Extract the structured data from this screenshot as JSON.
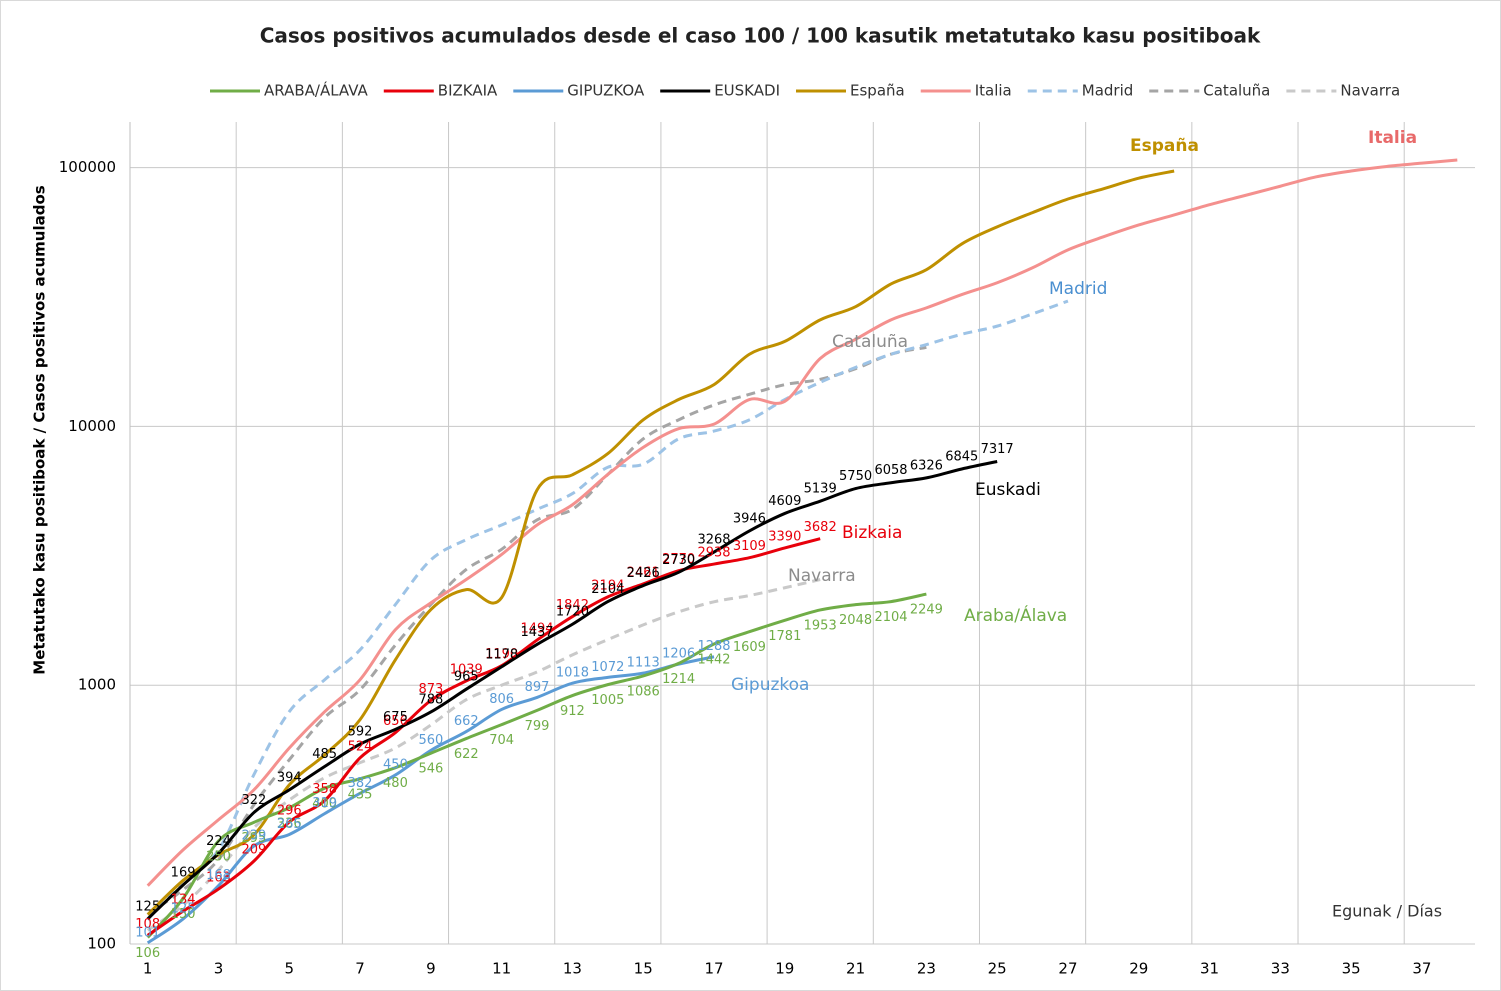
{
  "chart_data": {
    "type": "line",
    "title": "Casos positivos acumulados desde el caso 100 / 100 kasutik metatutako kasu positiboak",
    "y_axis_label": "Metatutako kasu positiboak / Casos positivos acumulados",
    "x_axis_label": "Egunak / Días",
    "x": [
      1,
      2,
      3,
      4,
      5,
      6,
      7,
      8,
      9,
      10,
      11,
      12,
      13,
      14,
      15,
      16,
      17,
      18,
      19,
      20,
      21,
      22,
      23,
      24,
      25,
      26,
      27,
      28,
      29,
      30,
      31,
      32,
      33,
      34,
      35,
      36,
      37,
      38
    ],
    "xlim": [
      0.5,
      38.5
    ],
    "xticks": [
      1,
      3,
      5,
      7,
      9,
      11,
      13,
      15,
      17,
      19,
      21,
      23,
      25,
      27,
      29,
      31,
      33,
      35,
      37
    ],
    "xgrid": [
      3.5,
      6.5,
      9.5,
      12.5,
      15.5,
      18.5,
      21.5,
      24.5,
      27.5,
      30.5,
      33.5,
      36.5
    ],
    "ylim": [
      100,
      150000
    ],
    "yticks": [
      100,
      1000,
      10000,
      100000
    ],
    "log_y": true,
    "grid": true,
    "legend": "top",
    "series": [
      {
        "name": "ARABA/ÁLAVA",
        "label": "Araba/Álava",
        "color": "#70ad47",
        "dash": false,
        "data_labels": true,
        "values": [
          106,
          150,
          250,
          295,
          336,
          400,
          435,
          480,
          546,
          622,
          704,
          799,
          912,
          1005,
          1086,
          1214,
          1442,
          1609,
          1781,
          1953,
          2048,
          2104,
          2249,
          null,
          null,
          null,
          null,
          null,
          null,
          null,
          null,
          null,
          null,
          null,
          null,
          null,
          null,
          null
        ]
      },
      {
        "name": "BIZKAIA",
        "label": "Bizkaia",
        "color": "#e8000b",
        "dash": false,
        "data_labels": true,
        "values": [
          108,
          134,
          163,
          209,
          296,
          358,
          524,
          656,
          873,
          1039,
          1190,
          1494,
          1842,
          2194,
          2461,
          2770,
          2938,
          3109,
          3390,
          3682,
          null,
          null,
          null,
          null,
          null,
          null,
          null,
          null,
          null,
          null,
          null,
          null,
          null,
          null,
          null,
          null,
          null,
          null
        ]
      },
      {
        "name": "GIPUZKOA",
        "label": "Gipuzkoa",
        "color": "#5b9bd5",
        "dash": false,
        "data_labels": true,
        "values": [
          101,
          125,
          168,
          239,
          265,
          319,
          382,
          450,
          560,
          662,
          806,
          897,
          1018,
          1072,
          1113,
          1206,
          1288,
          null,
          null,
          null,
          null,
          null,
          null,
          null,
          null,
          null,
          null,
          null,
          null,
          null,
          null,
          null,
          null,
          null,
          null,
          null,
          null,
          null
        ]
      },
      {
        "name": "EUSKADI",
        "label": "Euskadi",
        "color": "#000000",
        "dash": false,
        "data_labels": true,
        "values": [
          125,
          169,
          224,
          322,
          394,
          485,
          592,
          675,
          788,
          965,
          1178,
          1437,
          1720,
          2104,
          2426,
          2730,
          3268,
          3946,
          4609,
          5139,
          5750,
          6058,
          6326,
          6845,
          7317,
          null,
          null,
          null,
          null,
          null,
          null,
          null,
          null,
          null,
          null,
          null,
          null,
          null
        ]
      },
      {
        "name": "España",
        "label": "España",
        "color": "#bf9000",
        "dash": false,
        "data_labels": false,
        "values": [
          130,
          176,
          221,
          264,
          412,
          538,
          736,
          1255,
          1960,
          2340,
          2180,
          5680,
          6500,
          7850,
          10600,
          12700,
          14500,
          19000,
          21300,
          25800,
          29000,
          35500,
          40300,
          50700,
          59000,
          67000,
          75600,
          82800,
          91000,
          97000,
          null,
          null,
          null,
          null,
          null,
          null,
          null,
          null
        ]
      },
      {
        "name": "Italia",
        "label": "Italia",
        "color": "#f4908e",
        "dash": false,
        "data_labels": false,
        "values": [
          168,
          231,
          302,
          394,
          572,
          790,
          1050,
          1640,
          2080,
          2560,
          3200,
          4160,
          4980,
          6520,
          8300,
          9800,
          10200,
          12700,
          12500,
          18300,
          21700,
          25800,
          28700,
          32300,
          35900,
          41000,
          48100,
          54000,
          60000,
          65600,
          71900,
          78000,
          84700,
          92000,
          97000,
          101000,
          104000,
          107000
        ]
      },
      {
        "name": "Madrid",
        "label": "Madrid",
        "color": "#9dc3e6",
        "dash": true,
        "data_labels": false,
        "values": [
          124,
          176,
          231,
          451,
          790,
          1050,
          1370,
          2050,
          3050,
          3650,
          4160,
          4780,
          5500,
          6950,
          7140,
          8950,
          9590,
          10600,
          12700,
          14800,
          16900,
          19000,
          20700,
          22700,
          24400,
          27200,
          30500,
          null,
          null,
          null,
          null,
          null,
          null,
          null,
          null,
          null,
          null,
          null
        ]
      },
      {
        "name": "Cataluña",
        "label": "Cataluña",
        "color": "#a5a5a5",
        "dash": true,
        "data_labels": false,
        "values": [
          130,
          162,
          212,
          345,
          515,
          750,
          960,
          1430,
          2050,
          2800,
          3350,
          4350,
          4780,
          6520,
          8950,
          10600,
          12100,
          13300,
          14500,
          15200,
          16700,
          19000,
          20200,
          null,
          null,
          null,
          null,
          null,
          null,
          null,
          null,
          null,
          null,
          null,
          null,
          null,
          null,
          null
        ]
      },
      {
        "name": "Navarra",
        "label": "Navarra",
        "color": "#c9c9c9",
        "dash": true,
        "data_labels": false,
        "values": [
          113,
          141,
          193,
          281,
          360,
          439,
          502,
          572,
          702,
          879,
          1000,
          1125,
          1310,
          1500,
          1710,
          1920,
          2100,
          2220,
          2380,
          2560,
          null,
          null,
          null,
          null,
          null,
          null,
          null,
          null,
          null,
          null,
          null,
          null,
          null,
          null,
          null,
          null,
          null,
          null
        ]
      }
    ]
  }
}
